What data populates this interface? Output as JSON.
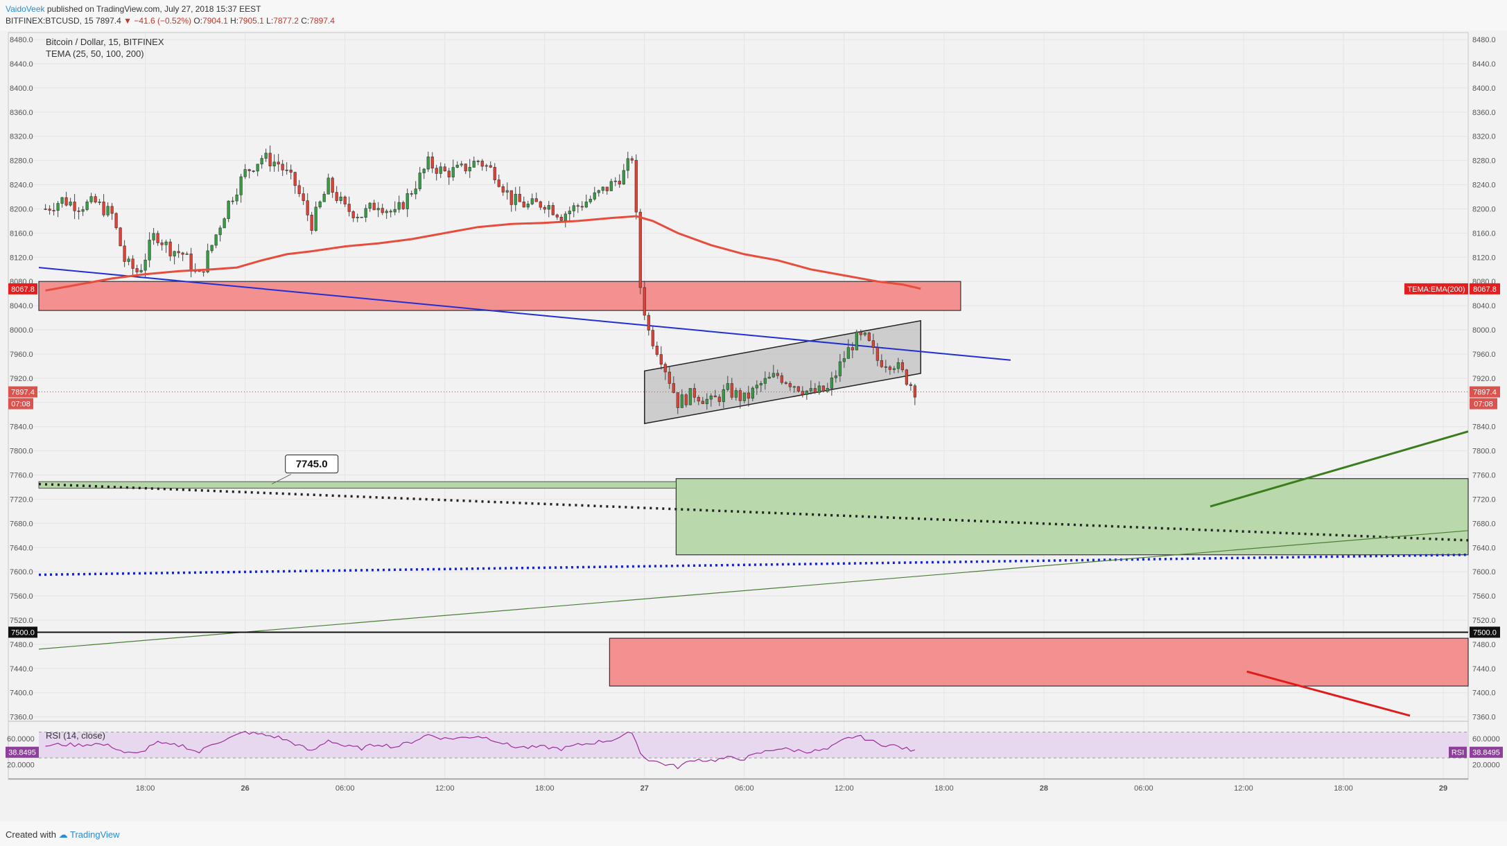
{
  "header": {
    "author": "VaidoVeek",
    "published": "published on TradingView.com, July 27, 2018 15:37 EEST",
    "symbol": "BITFINEX:BTCUSD, 15",
    "last": "7897.4",
    "change": "−41.6 (−0.52%)",
    "o_label": "O:",
    "o_value": "7904.1",
    "h_label": "H:",
    "h_value": "7905.1",
    "l_label": "L:",
    "l_value": "7877.2",
    "c_label": "C:",
    "c_value": "7897.4"
  },
  "footer": {
    "created_with": "Created with",
    "brand": "TradingView"
  },
  "colors": {
    "up": "#3c9a4a",
    "down": "#d9453b",
    "ema": "#e74c3c",
    "resistance_zone": "#f28b8b",
    "support_zone": "#b5d7a8",
    "rsi_band": "#e7d8f0",
    "rsi_line": "#9b2d9b",
    "trendline_blue": "#1f2fd6",
    "trendline_green": "#3a7d1c"
  },
  "chart_data": [
    {
      "type": "candlestick",
      "title": "Bitcoin / Dollar, 15, BITFINEX",
      "indicator": "TEMA (25, 50, 100, 200)",
      "y_ticks": [
        "8480.0",
        "8440.0",
        "8400.0",
        "8360.0",
        "8320.0",
        "8280.0",
        "8240.0",
        "8200.0",
        "8160.0",
        "8120.0",
        "8080.0",
        "8040.0",
        "8000.0",
        "7960.0",
        "7920.0",
        "7880.0",
        "7840.0",
        "7800.0",
        "7760.0",
        "7720.0",
        "7680.0",
        "7640.0",
        "7600.0",
        "7560.0",
        "7520.0",
        "7480.0",
        "7440.0",
        "7400.0",
        "7360.0"
      ],
      "y_tick_values": [
        8480,
        8440,
        8400,
        8360,
        8320,
        8280,
        8240,
        8200,
        8160,
        8120,
        8080,
        8040,
        8000,
        7960,
        7920,
        7880,
        7840,
        7800,
        7760,
        7720,
        7680,
        7640,
        7600,
        7560,
        7520,
        7480,
        7440,
        7400,
        7360
      ],
      "ylim": [
        7355,
        8495
      ],
      "x_ticks": [
        "18:00",
        "26",
        "06:00",
        "12:00",
        "18:00",
        "27",
        "06:00",
        "12:00",
        "18:00",
        "28",
        "06:00",
        "12:00",
        "18:00",
        "29"
      ],
      "x_tick_hours": [
        18,
        24,
        30,
        36,
        42,
        48,
        54,
        60,
        66,
        72,
        78,
        84,
        90,
        96
      ],
      "xlim_hours": [
        11.6,
        97.5
      ],
      "candle_anchors": [
        [
          12.0,
          8200
        ],
        [
          13.0,
          8215
        ],
        [
          14.0,
          8205
        ],
        [
          15.0,
          8210
        ],
        [
          16.0,
          8190
        ],
        [
          16.8,
          8110
        ],
        [
          17.6,
          8095
        ],
        [
          18.6,
          8160
        ],
        [
          19.4,
          8135
        ],
        [
          20.3,
          8125
        ],
        [
          21.2,
          8085
        ],
        [
          22.0,
          8140
        ],
        [
          23.0,
          8210
        ],
        [
          24.0,
          8260
        ],
        [
          25.0,
          8285
        ],
        [
          26.0,
          8275
        ],
        [
          27.0,
          8240
        ],
        [
          28.0,
          8175
        ],
        [
          29.0,
          8240
        ],
        [
          30.0,
          8200
        ],
        [
          31.0,
          8190
        ],
        [
          32.0,
          8210
        ],
        [
          33.0,
          8190
        ],
        [
          34.0,
          8230
        ],
        [
          35.0,
          8275
        ],
        [
          36.0,
          8260
        ],
        [
          37.0,
          8265
        ],
        [
          38.0,
          8280
        ],
        [
          39.0,
          8260
        ],
        [
          40.0,
          8215
        ],
        [
          41.0,
          8205
        ],
        [
          42.0,
          8210
        ],
        [
          43.0,
          8190
        ],
        [
          44.0,
          8205
        ],
        [
          45.0,
          8220
        ],
        [
          46.0,
          8240
        ],
        [
          46.8,
          8260
        ],
        [
          47.3,
          8290
        ],
        [
          47.7,
          8080
        ],
        [
          48.2,
          8000
        ],
        [
          49.0,
          7955
        ],
        [
          50.0,
          7880
        ],
        [
          51.0,
          7895
        ],
        [
          52.0,
          7880
        ],
        [
          53.0,
          7900
        ],
        [
          54.0,
          7885
        ],
        [
          55.0,
          7910
        ],
        [
          56.0,
          7925
        ],
        [
          57.0,
          7910
        ],
        [
          58.0,
          7895
        ],
        [
          59.0,
          7900
        ],
        [
          60.0,
          7955
        ],
        [
          60.7,
          7985
        ],
        [
          61.3,
          7985
        ],
        [
          62.0,
          7950
        ],
        [
          63.0,
          7945
        ],
        [
          64.0,
          7910
        ],
        [
          64.4,
          7895
        ]
      ],
      "ema200_anchors": [
        [
          12.0,
          8065
        ],
        [
          14.0,
          8075
        ],
        [
          16.0,
          8085
        ],
        [
          18.0,
          8092
        ],
        [
          20.0,
          8097
        ],
        [
          22.0,
          8100
        ],
        [
          23.5,
          8103
        ],
        [
          25.0,
          8115
        ],
        [
          26.5,
          8125
        ],
        [
          28.0,
          8130
        ],
        [
          30.0,
          8138
        ],
        [
          32.0,
          8143
        ],
        [
          34.0,
          8150
        ],
        [
          36.0,
          8160
        ],
        [
          38.0,
          8170
        ],
        [
          40.0,
          8175
        ],
        [
          42.0,
          8177
        ],
        [
          44.0,
          8180
        ],
        [
          46.0,
          8185
        ],
        [
          47.5,
          8188
        ],
        [
          48.5,
          8180
        ],
        [
          50.0,
          8160
        ],
        [
          52.0,
          8140
        ],
        [
          54.0,
          8125
        ],
        [
          56.0,
          8115
        ],
        [
          58.0,
          8100
        ],
        [
          60.0,
          8090
        ],
        [
          62.0,
          8080
        ],
        [
          63.5,
          8075
        ],
        [
          64.6,
          8068
        ]
      ],
      "resistance_zone": {
        "x0": 11.6,
        "x1": 67.0,
        "y0": 8032,
        "y1": 8080
      },
      "channel": {
        "lower": [
          [
            48.0,
            7845
          ],
          [
            64.6,
            7928
          ]
        ],
        "upper": [
          [
            48.0,
            7932
          ],
          [
            64.6,
            8015
          ]
        ]
      },
      "blue_trendline": [
        [
          11.6,
          8103
        ],
        [
          70.0,
          7950
        ]
      ],
      "level_7745": {
        "label": "7745.0",
        "y": 7745
      },
      "support_zone": {
        "x0": 49.9,
        "x1": 97.5,
        "y0": 7628,
        "y1": 7754
      },
      "black_dotted": [
        [
          11.6,
          7745
        ],
        [
          97.5,
          7652
        ]
      ],
      "blue_dotted": [
        [
          11.6,
          7595
        ],
        [
          97.5,
          7628
        ]
      ],
      "green_thin": [
        [
          11.6,
          7472
        ],
        [
          97.5,
          7668
        ]
      ],
      "green_arrow": [
        [
          82.0,
          7708
        ],
        [
          97.5,
          7832
        ]
      ],
      "hline_7500": {
        "label": "7500.0",
        "y": 7500
      },
      "red_zone": {
        "x0": 45.9,
        "x1": 97.5,
        "y0": 7411,
        "y1": 7490
      },
      "red_arrow": [
        [
          84.2,
          7435
        ],
        [
          94.0,
          7362
        ]
      ],
      "last_price": {
        "label": "7897.4",
        "countdown": "07:08",
        "y": 7897.4
      },
      "ema_value": {
        "label": "8067.8",
        "name": "TEMA:EMA(200)",
        "y": 8067.8
      }
    },
    {
      "type": "line",
      "title": "RSI (14, close)",
      "y_ticks": [
        "60.0000",
        "20.0000"
      ],
      "y_tick_values": [
        60,
        20
      ],
      "ylim": [
        0,
        76
      ],
      "band": [
        30,
        70
      ],
      "rsi_anchors": [
        [
          12.0,
          49
        ],
        [
          13.0,
          51
        ],
        [
          14.0,
          50
        ],
        [
          15.0,
          52
        ],
        [
          16.0,
          48
        ],
        [
          16.8,
          38
        ],
        [
          17.6,
          36
        ],
        [
          18.6,
          54
        ],
        [
          19.4,
          50
        ],
        [
          20.3,
          49
        ],
        [
          21.2,
          38
        ],
        [
          22.0,
          52
        ],
        [
          23.0,
          60
        ],
        [
          24.0,
          70
        ],
        [
          25.0,
          66
        ],
        [
          26.0,
          62
        ],
        [
          27.0,
          52
        ],
        [
          28.0,
          40
        ],
        [
          29.0,
          58
        ],
        [
          30.0,
          48
        ],
        [
          31.0,
          45
        ],
        [
          32.0,
          52
        ],
        [
          33.0,
          47
        ],
        [
          34.0,
          55
        ],
        [
          35.0,
          66
        ],
        [
          36.0,
          60
        ],
        [
          37.0,
          61
        ],
        [
          38.0,
          64
        ],
        [
          39.0,
          58
        ],
        [
          40.0,
          48
        ],
        [
          41.0,
          46
        ],
        [
          42.0,
          47
        ],
        [
          43.0,
          44
        ],
        [
          44.0,
          50
        ],
        [
          45.0,
          54
        ],
        [
          46.0,
          58
        ],
        [
          46.8,
          64
        ],
        [
          47.3,
          72
        ],
        [
          47.7,
          38
        ],
        [
          48.2,
          28
        ],
        [
          49.0,
          22
        ],
        [
          50.0,
          16
        ],
        [
          51.0,
          28
        ],
        [
          52.0,
          26
        ],
        [
          53.0,
          30
        ],
        [
          54.0,
          29
        ],
        [
          55.0,
          38
        ],
        [
          56.0,
          45
        ],
        [
          57.0,
          42
        ],
        [
          58.0,
          40
        ],
        [
          59.0,
          43
        ],
        [
          60.0,
          58
        ],
        [
          60.7,
          64
        ],
        [
          61.3,
          60
        ],
        [
          62.0,
          52
        ],
        [
          63.0,
          49
        ],
        [
          64.0,
          42
        ],
        [
          64.4,
          39
        ]
      ],
      "last_value": {
        "label": "38.8495",
        "name": "RSI",
        "y": 38.8495
      }
    }
  ]
}
